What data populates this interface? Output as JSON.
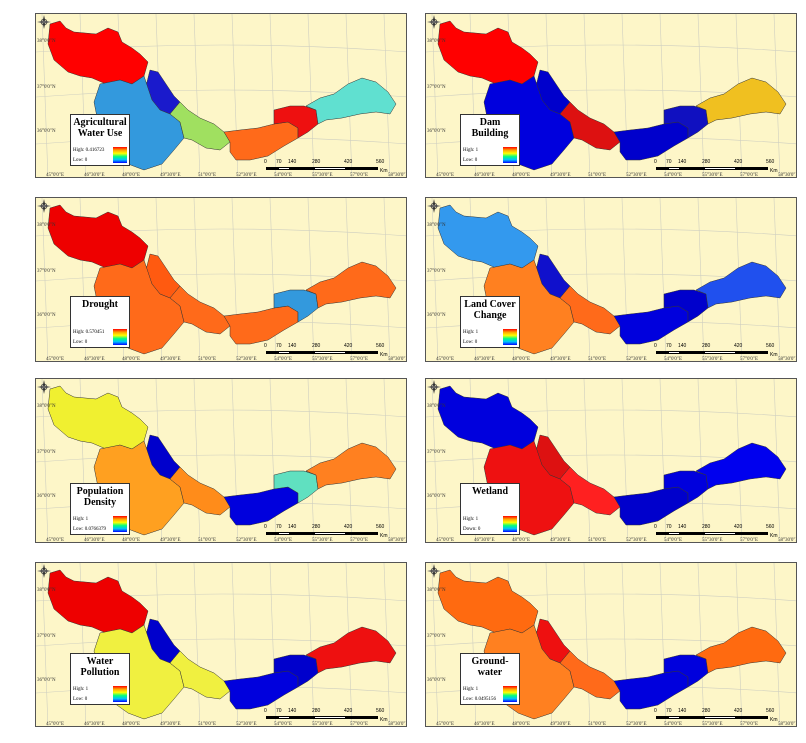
{
  "panels": [
    {
      "title": "Agricultural Water Use",
      "high": "High: 0.416723",
      "low": "Low: 0",
      "colors": {
        "west": "#ff0000",
        "karun": "#1a1acc",
        "center": "#3399dd",
        "mid": "#a0e060",
        "east1": "#ff6a1a",
        "east2": "#ee1010",
        "east3": "#60e0d0"
      }
    },
    {
      "title": "Dam Building",
      "high": "High: 1",
      "low": "Low: 0",
      "colors": {
        "west": "#ff0000",
        "karun": "#0000cc",
        "center": "#0000dd",
        "mid": "#dd1111",
        "east1": "#0000cc",
        "east2": "#1010c0",
        "east3": "#f0c020"
      }
    },
    {
      "title": "Drought",
      "high": "High: 0.570451",
      "low": "Low: 0",
      "colors": {
        "west": "#ee0000",
        "karun": "#ff5a10",
        "center": "#ff6a1a",
        "mid": "#ff6a1a",
        "east1": "#ff6a1a",
        "east2": "#3399dd",
        "east3": "#ff6a1a"
      }
    },
    {
      "title": "Land Cover Change",
      "high": "High: 1",
      "low": "Low: 0",
      "colors": {
        "west": "#3399ee",
        "karun": "#1010cc",
        "center": "#ff8020",
        "mid": "#ff6a1a",
        "east1": "#0000dd",
        "east2": "#0000cc",
        "east3": "#2050ee"
      }
    },
    {
      "title": "Population Density",
      "high": "High: 1",
      "low": "Low: 0.0766379",
      "colors": {
        "west": "#f0f030",
        "karun": "#0000cc",
        "center": "#ffa020",
        "mid": "#ff8c1a",
        "east1": "#0000dd",
        "east2": "#60e0c0",
        "east3": "#ff8020"
      }
    },
    {
      "title": "Wetland",
      "high": "High: 1",
      "low": "Down: 0",
      "colors": {
        "west": "#0000dd",
        "karun": "#dd1111",
        "center": "#ee1111",
        "mid": "#ff2020",
        "east1": "#0000cc",
        "east2": "#0000dd",
        "east3": "#0000ee"
      }
    },
    {
      "title": "Water Pollution",
      "high": "High: 1",
      "low": "Low: 0",
      "colors": {
        "west": "#ee0000",
        "karun": "#0000cc",
        "center": "#f0f040",
        "mid": "#f0f040",
        "east1": "#0000dd",
        "east2": "#0000cc",
        "east3": "#ee1010"
      }
    },
    {
      "title": "Ground-water",
      "high": "High: 1",
      "low": "Low: 0.0495156",
      "colors": {
        "west": "#ff6a10",
        "karun": "#ee1010",
        "center": "#ff8020",
        "mid": "#ff6a1a",
        "east1": "#0000dd",
        "east2": "#0000dd",
        "east3": "#ff6a10"
      }
    }
  ],
  "lat_labels": [
    "38°0'0\"N",
    "37°0'0\"N",
    "36°0'0\"N"
  ],
  "lon_labels": [
    "45°0'0\"E",
    "46°30'0\"E",
    "48°0'0\"E",
    "49°30'0\"E",
    "51°0'0\"E",
    "52°30'0\"E",
    "54°0'0\"E",
    "55°30'0\"E",
    "57°0'0\"E",
    "58°30'0\"E"
  ],
  "scale_ticks": [
    "0",
    "70",
    "140",
    "280",
    "420",
    "560"
  ],
  "scale_unit": "Km",
  "compass_letters": {
    "n": "N",
    "s": "S",
    "e": "E",
    "w": "W"
  }
}
